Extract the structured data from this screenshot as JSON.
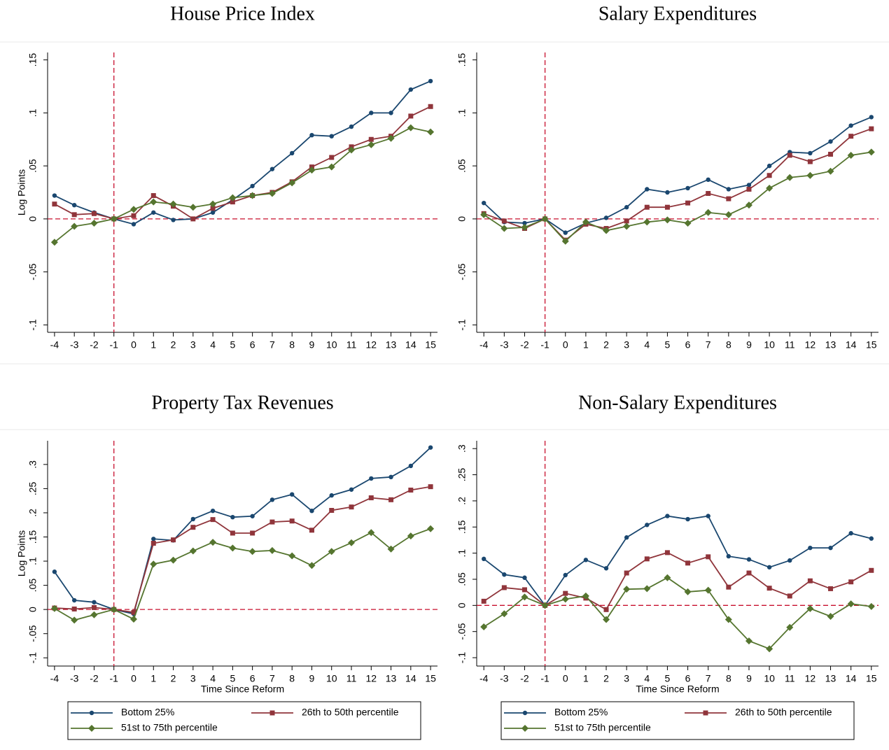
{
  "chart_data": [
    {
      "type": "line",
      "title": "House Price Index",
      "y_label": "Log Points",
      "x": [
        -4,
        -3,
        -2,
        -1,
        0,
        1,
        2,
        3,
        4,
        5,
        6,
        7,
        8,
        9,
        10,
        11,
        12,
        13,
        14,
        15
      ],
      "xlim": [
        -4.35,
        15.35
      ],
      "xticks": [
        -4,
        -3,
        -2,
        -1,
        0,
        1,
        2,
        3,
        4,
        5,
        6,
        7,
        8,
        9,
        10,
        11,
        12,
        13,
        14,
        15
      ],
      "ylim": [
        -0.107,
        0.157
      ],
      "yticks": [
        {
          "value": -0.1,
          "label": "-.1"
        },
        {
          "value": -0.05,
          "label": "-.05"
        },
        0,
        {
          "value": 0.05,
          "label": ".05"
        },
        {
          "value": 0.1,
          "label": ".1"
        },
        {
          "value": 0.15,
          "label": ".15"
        }
      ],
      "reference_lines": {
        "x": -1,
        "y": 0,
        "color": "#c8102e"
      },
      "series": [
        {
          "color": "#1a476f",
          "marker": "circle",
          "values": [
            0.022,
            0.013,
            0.006,
            0,
            -0.005,
            0.006,
            -0.001,
            0.0,
            0.006,
            0.018,
            0.031,
            0.047,
            0.062,
            0.079,
            0.078,
            0.087,
            0.1,
            0.1,
            0.122,
            0.13
          ]
        },
        {
          "color": "#90353b",
          "marker": "square",
          "values": [
            0.014,
            0.004,
            0.005,
            0,
            0.003,
            0.022,
            0.012,
            0.0,
            0.01,
            0.016,
            0.022,
            0.025,
            0.035,
            0.049,
            0.058,
            0.068,
            0.075,
            0.078,
            0.097,
            0.106
          ]
        },
        {
          "color": "#55752f",
          "marker": "diamond",
          "values": [
            -0.022,
            -0.007,
            -0.004,
            0,
            0.009,
            0.016,
            0.014,
            0.011,
            0.014,
            0.02,
            0.022,
            0.024,
            0.034,
            0.046,
            0.049,
            0.065,
            0.07,
            0.076,
            0.086,
            0.082
          ]
        }
      ]
    },
    {
      "type": "line",
      "title": "Salary Expenditures",
      "x": [
        -4,
        -3,
        -2,
        -1,
        0,
        1,
        2,
        3,
        4,
        5,
        6,
        7,
        8,
        9,
        10,
        11,
        12,
        13,
        14,
        15
      ],
      "xlim": [
        -4.35,
        15.35
      ],
      "xticks": [
        -4,
        -3,
        -2,
        -1,
        0,
        1,
        2,
        3,
        4,
        5,
        6,
        7,
        8,
        9,
        10,
        11,
        12,
        13,
        14,
        15
      ],
      "ylim": [
        -0.107,
        0.157
      ],
      "yticks": [
        {
          "value": -0.1,
          "label": "-.1"
        },
        {
          "value": -0.05,
          "label": "-.05"
        },
        0,
        {
          "value": 0.05,
          "label": ".05"
        },
        {
          "value": 0.1,
          "label": ".1"
        },
        {
          "value": 0.15,
          "label": ".15"
        }
      ],
      "reference_lines": {
        "x": -1,
        "y": 0,
        "color": "#c8102e"
      },
      "series": [
        {
          "color": "#1a476f",
          "marker": "circle",
          "values": [
            0.015,
            -0.003,
            -0.004,
            0,
            -0.013,
            -0.004,
            0.001,
            0.011,
            0.028,
            0.025,
            0.029,
            0.037,
            0.028,
            0.032,
            0.05,
            0.063,
            0.062,
            0.073,
            0.088,
            0.096
          ]
        },
        {
          "color": "#90353b",
          "marker": "square",
          "values": [
            0.005,
            -0.002,
            -0.009,
            0,
            -0.02,
            -0.005,
            -0.009,
            -0.002,
            0.011,
            0.011,
            0.015,
            0.024,
            0.019,
            0.028,
            0.041,
            0.06,
            0.054,
            0.061,
            0.078,
            0.085
          ]
        },
        {
          "color": "#55752f",
          "marker": "diamond",
          "values": [
            0.004,
            -0.009,
            -0.008,
            0,
            -0.021,
            -0.003,
            -0.011,
            -0.007,
            -0.003,
            -0.001,
            -0.004,
            0.006,
            0.004,
            0.013,
            0.029,
            0.039,
            0.041,
            0.045,
            0.06,
            0.063
          ]
        }
      ]
    },
    {
      "type": "line",
      "title": "Property Tax Revenues",
      "y_label": "Log Points",
      "x_label": "Time Since Reform",
      "x": [
        -4,
        -3,
        -2,
        -1,
        0,
        1,
        2,
        3,
        4,
        5,
        6,
        7,
        8,
        9,
        10,
        11,
        12,
        13,
        14,
        15
      ],
      "xlim": [
        -4.35,
        15.35
      ],
      "xticks": [
        -4,
        -3,
        -2,
        -1,
        0,
        1,
        2,
        3,
        4,
        5,
        6,
        7,
        8,
        9,
        10,
        11,
        12,
        13,
        14,
        15
      ],
      "ylim": [
        -0.117,
        0.349
      ],
      "yticks": [
        {
          "value": -0.1,
          "label": "-.1"
        },
        {
          "value": -0.05,
          "label": "-.05"
        },
        0,
        {
          "value": 0.05,
          "label": ".05"
        },
        {
          "value": 0.1,
          "label": ".1"
        },
        {
          "value": 0.15,
          "label": ".15"
        },
        {
          "value": 0.2,
          "label": ".2"
        },
        {
          "value": 0.25,
          "label": ".25"
        },
        {
          "value": 0.3,
          "label": ".3"
        }
      ],
      "reference_lines": {
        "x": -1,
        "y": 0,
        "color": "#c8102e"
      },
      "series": [
        {
          "name": "Bottom 25%",
          "color": "#1a476f",
          "marker": "circle",
          "values": [
            0.078,
            0.019,
            0.015,
            0,
            -0.009,
            0.146,
            0.143,
            0.187,
            0.204,
            0.191,
            0.193,
            0.227,
            0.238,
            0.204,
            0.236,
            0.248,
            0.271,
            0.274,
            0.297,
            0.335
          ]
        },
        {
          "name": "26th to 50th percentile",
          "color": "#90353b",
          "marker": "square",
          "values": [
            0.003,
            0.001,
            0.004,
            0,
            -0.006,
            0.137,
            0.144,
            0.17,
            0.186,
            0.158,
            0.158,
            0.181,
            0.183,
            0.164,
            0.205,
            0.212,
            0.231,
            0.227,
            0.247,
            0.254
          ]
        },
        {
          "name": "51st to 75th percentile",
          "color": "#55752f",
          "marker": "diamond",
          "values": [
            0.002,
            -0.022,
            -0.011,
            0,
            -0.02,
            0.094,
            0.102,
            0.121,
            0.139,
            0.127,
            0.12,
            0.122,
            0.111,
            0.091,
            0.12,
            0.138,
            0.159,
            0.125,
            0.152,
            0.167
          ]
        }
      ]
    },
    {
      "type": "line",
      "title": "Non-Salary Expenditures",
      "x_label": "Time Since Reform",
      "x": [
        -4,
        -3,
        -2,
        -1,
        0,
        1,
        2,
        3,
        4,
        5,
        6,
        7,
        8,
        9,
        10,
        11,
        12,
        13,
        14,
        15
      ],
      "xlim": [
        -4.35,
        15.35
      ],
      "xticks": [
        -4,
        -3,
        -2,
        -1,
        0,
        1,
        2,
        3,
        4,
        5,
        6,
        7,
        8,
        9,
        10,
        11,
        12,
        13,
        14,
        15
      ],
      "ylim": [
        -0.116,
        0.315
      ],
      "yticks": [
        {
          "value": -0.1,
          "label": "-.1"
        },
        {
          "value": -0.05,
          "label": "-.05"
        },
        0,
        {
          "value": 0.05,
          "label": ".05"
        },
        {
          "value": 0.1,
          "label": ".1"
        },
        {
          "value": 0.15,
          "label": ".15"
        },
        {
          "value": 0.2,
          "label": ".2"
        },
        {
          "value": 0.25,
          "label": ".25"
        },
        {
          "value": 0.3,
          "label": ".3"
        }
      ],
      "reference_lines": {
        "x": -1,
        "y": 0,
        "color": "#c8102e"
      },
      "series": [
        {
          "name": "Bottom 25%",
          "color": "#1a476f",
          "marker": "circle",
          "values": [
            0.089,
            0.059,
            0.053,
            0,
            0.058,
            0.087,
            0.071,
            0.13,
            0.154,
            0.171,
            0.165,
            0.171,
            0.094,
            0.088,
            0.073,
            0.086,
            0.11,
            0.11,
            0.138,
            0.128
          ]
        },
        {
          "name": "26th to 50th percentile",
          "color": "#90353b",
          "marker": "square",
          "values": [
            0.008,
            0.034,
            0.03,
            0,
            0.023,
            0.014,
            -0.008,
            0.062,
            0.089,
            0.101,
            0.081,
            0.093,
            0.035,
            0.062,
            0.033,
            0.018,
            0.047,
            0.032,
            0.045,
            0.067
          ]
        },
        {
          "name": "51st to 75th percentile",
          "color": "#55752f",
          "marker": "diamond",
          "values": [
            -0.041,
            -0.016,
            0.016,
            0,
            0.012,
            0.018,
            -0.027,
            0.031,
            0.032,
            0.053,
            0.026,
            0.029,
            -0.027,
            -0.068,
            -0.083,
            -0.042,
            -0.006,
            -0.021,
            0.003,
            -0.002
          ]
        }
      ]
    }
  ]
}
